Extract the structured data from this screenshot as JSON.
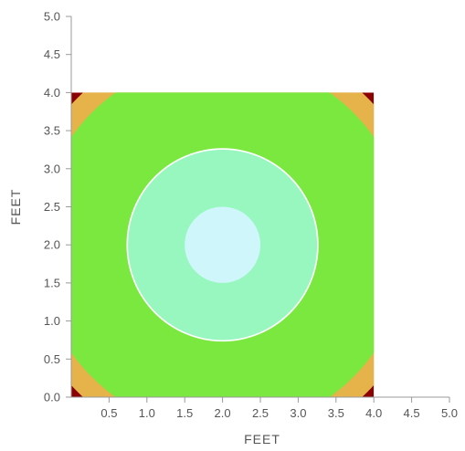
{
  "chart_data": {
    "type": "heatmap",
    "title": "",
    "xlabel": "FEET",
    "ylabel": "FEET",
    "xlim": [
      0,
      5
    ],
    "ylim": [
      0,
      5
    ],
    "x_ticks": [
      "0.5",
      "1.0",
      "1.5",
      "2.0",
      "2.5",
      "3.0",
      "3.5",
      "4.0",
      "4.5",
      "5.0"
    ],
    "y_ticks": [
      "0.0",
      "0.5",
      "1.0",
      "1.5",
      "2.0",
      "2.5",
      "3.0",
      "3.5",
      "4.0",
      "4.5",
      "5.0"
    ],
    "grid": false,
    "legend": "none",
    "field": {
      "x_range": [
        0,
        4
      ],
      "y_range": [
        0,
        4
      ],
      "center": [
        2,
        2
      ],
      "background_color": "#8b0000"
    },
    "bands": [
      {
        "name": "",
        "outer_radius": 2.72,
        "color": "#e6b34a"
      },
      {
        "name": "",
        "outer_radius": 2.45,
        "color": "#7ae83f"
      },
      {
        "name": "",
        "outer_radius": 1.27,
        "color": "#ffffff"
      },
      {
        "name": "",
        "outer_radius": 1.25,
        "color": "#97f7bf"
      },
      {
        "name": "",
        "outer_radius": 0.5,
        "color": "#cff7fb"
      }
    ]
  }
}
